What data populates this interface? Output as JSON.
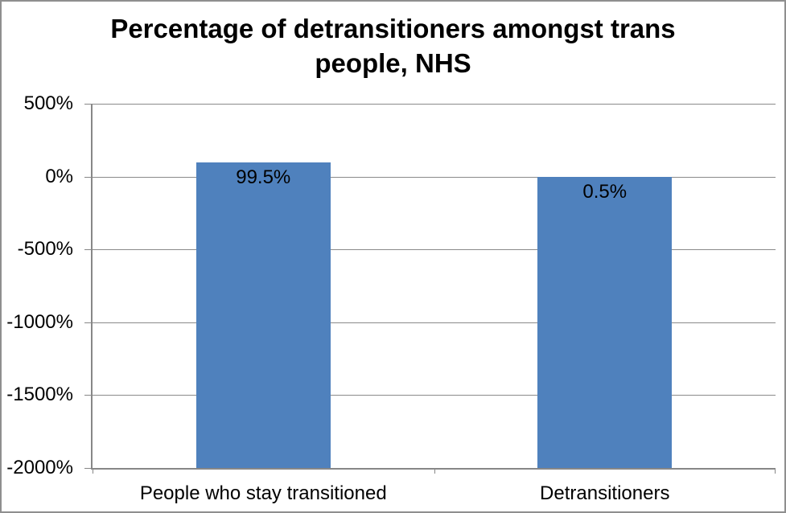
{
  "chart_data": {
    "type": "bar",
    "title": "Percentage of detransitioners amongst trans people, NHS",
    "title_lines": [
      "Percentage of detransitioners amongst trans",
      "people, NHS"
    ],
    "categories": [
      "People who stay transitioned",
      "Detransitioners"
    ],
    "values": [
      99.5,
      0.5
    ],
    "data_labels": [
      "99.5%",
      "0.5%"
    ],
    "xlabel": "",
    "ylabel": "",
    "ylim": [
      -2000,
      500
    ],
    "ytick_step": 500,
    "yticks": [
      {
        "value": 500,
        "label": "500%"
      },
      {
        "value": 0,
        "label": "0%"
      },
      {
        "value": -500,
        "label": "-500%"
      },
      {
        "value": -1000,
        "label": "-1000%"
      },
      {
        "value": -1500,
        "label": "-1500%"
      },
      {
        "value": -2000,
        "label": "-2000%"
      }
    ],
    "bar_base": -2000,
    "grid": true,
    "legend": false,
    "colors": {
      "bar_fill": "#4f81bd",
      "axis": "#878787",
      "gridline": "#8a8a8a",
      "text": "#000000",
      "background": "#ffffff",
      "border": "#8f8f8f"
    }
  }
}
